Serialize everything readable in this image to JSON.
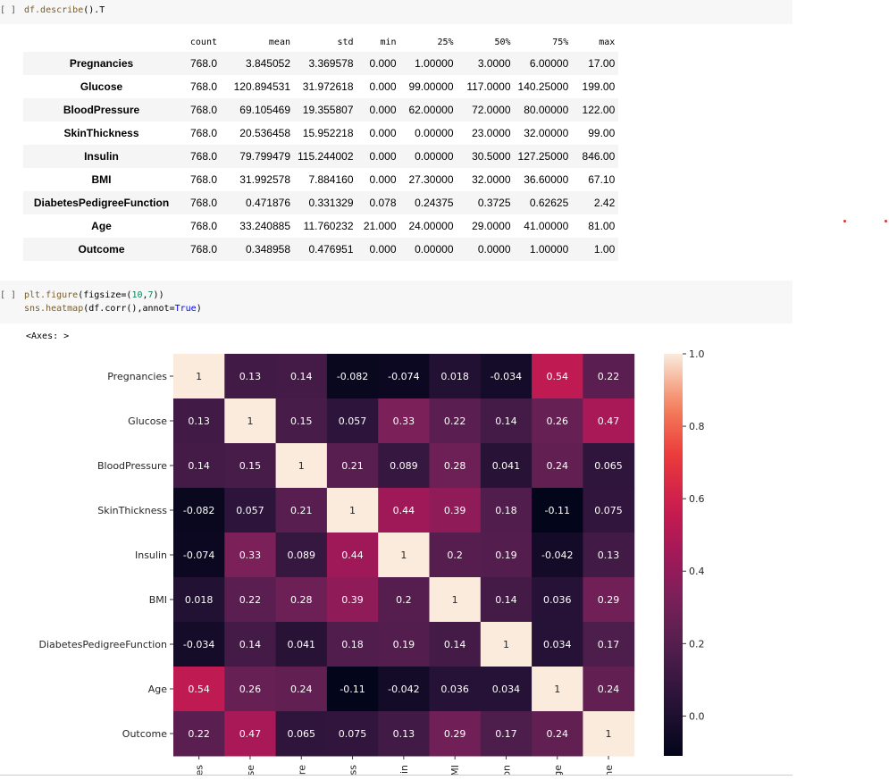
{
  "cells": [
    {
      "prompt": "[ ]",
      "code_lines": [
        [
          {
            "t": "df.describe",
            "c": "fn"
          },
          {
            "t": "().T",
            "c": "pun"
          }
        ]
      ]
    },
    {
      "prompt": "[ ]",
      "code_lines": [
        [
          {
            "t": "plt.figure",
            "c": "fn"
          },
          {
            "t": "(figsize=(",
            "c": "pun"
          },
          {
            "t": "10",
            "c": "num"
          },
          {
            "t": ",",
            "c": "pun"
          },
          {
            "t": "7",
            "c": "num"
          },
          {
            "t": "))",
            "c": "pun"
          }
        ],
        [
          {
            "t": "sns.heatmap",
            "c": "fn"
          },
          {
            "t": "(df.corr(),annot=",
            "c": "pun"
          },
          {
            "t": "True",
            "c": "kw"
          },
          {
            "t": ")",
            "c": "pun"
          }
        ]
      ]
    }
  ],
  "describe_table": {
    "columns": [
      "count",
      "mean",
      "std",
      "min",
      "25%",
      "50%",
      "75%",
      "max"
    ],
    "rows": [
      {
        "name": "Pregnancies",
        "values": [
          "768.0",
          "3.845052",
          "3.369578",
          "0.000",
          "1.00000",
          "3.0000",
          "6.00000",
          "17.00"
        ]
      },
      {
        "name": "Glucose",
        "values": [
          "768.0",
          "120.894531",
          "31.972618",
          "0.000",
          "99.00000",
          "117.0000",
          "140.25000",
          "199.00"
        ]
      },
      {
        "name": "BloodPressure",
        "values": [
          "768.0",
          "69.105469",
          "19.355807",
          "0.000",
          "62.00000",
          "72.0000",
          "80.00000",
          "122.00"
        ]
      },
      {
        "name": "SkinThickness",
        "values": [
          "768.0",
          "20.536458",
          "15.952218",
          "0.000",
          "0.00000",
          "23.0000",
          "32.00000",
          "99.00"
        ]
      },
      {
        "name": "Insulin",
        "values": [
          "768.0",
          "79.799479",
          "115.244002",
          "0.000",
          "0.00000",
          "30.5000",
          "127.25000",
          "846.00"
        ]
      },
      {
        "name": "BMI",
        "values": [
          "768.0",
          "31.992578",
          "7.884160",
          "0.000",
          "27.30000",
          "32.0000",
          "36.60000",
          "67.10"
        ]
      },
      {
        "name": "DiabetesPedigreeFunction",
        "values": [
          "768.0",
          "0.471876",
          "0.331329",
          "0.078",
          "0.24375",
          "0.3725",
          "0.62625",
          "2.42"
        ]
      },
      {
        "name": "Age",
        "values": [
          "768.0",
          "33.240885",
          "11.760232",
          "21.000",
          "24.00000",
          "29.0000",
          "41.00000",
          "81.00"
        ]
      },
      {
        "name": "Outcome",
        "values": [
          "768.0",
          "0.348958",
          "0.476951",
          "0.000",
          "0.00000",
          "0.0000",
          "1.00000",
          "1.00"
        ]
      }
    ]
  },
  "axes_text": "<Axes: >",
  "colors": {
    "dot": "#e03030"
  },
  "chart_data": {
    "type": "heatmap",
    "labels": [
      "Pregnancies",
      "Glucose",
      "BloodPressure",
      "SkinThickness",
      "Insulin",
      "BMI",
      "DiabetesPedigreeFunction",
      "Age",
      "Outcome"
    ],
    "x_tick_labels_visible": [
      "es",
      "se",
      "re",
      "ss",
      "in",
      "MI",
      "on",
      "ge",
      "me"
    ],
    "matrix": [
      [
        1,
        0.13,
        0.14,
        -0.082,
        -0.074,
        0.018,
        -0.034,
        0.54,
        0.22
      ],
      [
        0.13,
        1,
        0.15,
        0.057,
        0.33,
        0.22,
        0.14,
        0.26,
        0.47
      ],
      [
        0.14,
        0.15,
        1,
        0.21,
        0.089,
        0.28,
        0.041,
        0.24,
        0.065
      ],
      [
        -0.082,
        0.057,
        0.21,
        1,
        0.44,
        0.39,
        0.18,
        -0.11,
        0.075
      ],
      [
        -0.074,
        0.33,
        0.089,
        0.44,
        1,
        0.2,
        0.19,
        -0.042,
        0.13
      ],
      [
        0.018,
        0.22,
        0.28,
        0.39,
        0.2,
        1,
        0.14,
        0.036,
        0.29
      ],
      [
        -0.034,
        0.14,
        0.041,
        0.18,
        0.19,
        0.14,
        1,
        0.034,
        0.17
      ],
      [
        0.54,
        0.26,
        0.24,
        -0.11,
        -0.042,
        0.036,
        0.034,
        1,
        0.24
      ],
      [
        0.22,
        0.47,
        0.065,
        0.075,
        0.13,
        0.29,
        0.17,
        0.24,
        1
      ]
    ],
    "vmin": -0.11,
    "vmax": 1.0,
    "colorbar_ticks": [
      "0.0",
      "0.2",
      "0.4",
      "0.6",
      "0.8",
      "1.0"
    ],
    "colormap": "rocket"
  }
}
